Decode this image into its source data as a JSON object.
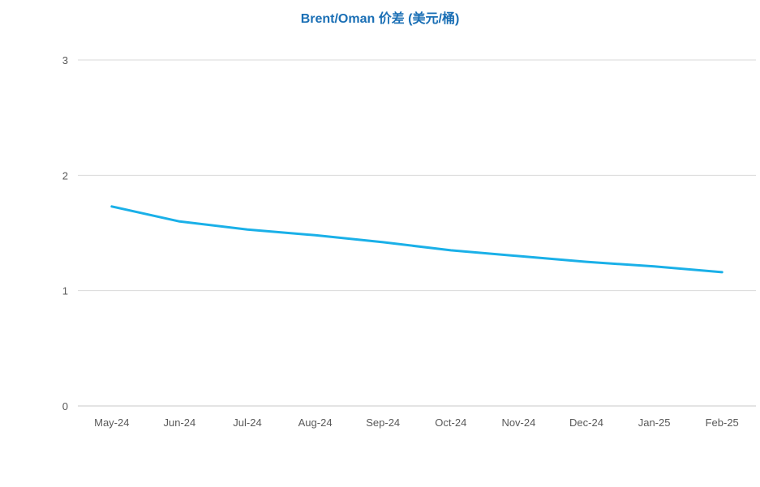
{
  "chart_data": {
    "type": "line",
    "title": "Brent/Oman 价差 (美元/桶)",
    "xlabel": "",
    "ylabel": "",
    "categories": [
      "May-24",
      "Jun-24",
      "Jul-24",
      "Aug-24",
      "Sep-24",
      "Oct-24",
      "Nov-24",
      "Dec-24",
      "Jan-25",
      "Feb-25"
    ],
    "series": [
      {
        "values": [
          1.73,
          1.6,
          1.53,
          1.48,
          1.42,
          1.35,
          1.3,
          1.25,
          1.21,
          1.16
        ],
        "color": "#1ab0e8"
      }
    ],
    "ylim": [
      0,
      3
    ],
    "yticks": [
      0,
      1,
      2,
      3
    ],
    "grid": true,
    "legend": "none"
  }
}
